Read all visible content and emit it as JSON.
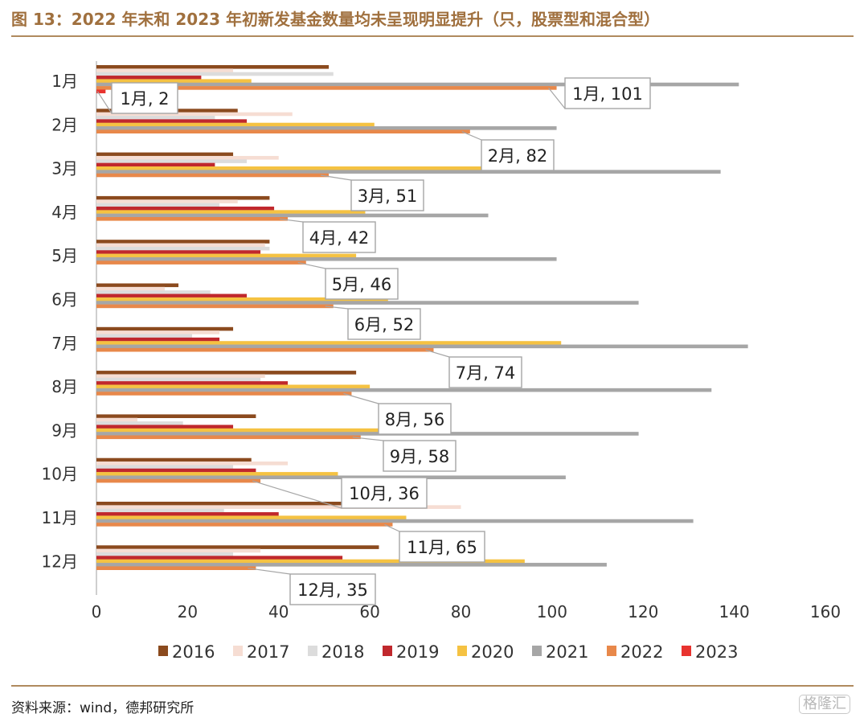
{
  "title": "图 13：2022 年末和 2023 年初新发基金数量均未呈现明显提升（只，股票型和混合型）",
  "source": "资料来源：wind，德邦研究所",
  "watermark": "格隆汇",
  "chart_data": {
    "type": "bar",
    "orientation": "horizontal",
    "categories": [
      "1月",
      "2月",
      "3月",
      "4月",
      "5月",
      "6月",
      "7月",
      "8月",
      "9月",
      "10月",
      "11月",
      "12月"
    ],
    "series": [
      {
        "name": "2016",
        "color": "#8b4a1e",
        "values": [
          51,
          31,
          30,
          38,
          38,
          18,
          30,
          57,
          35,
          34,
          54,
          62
        ]
      },
      {
        "name": "2017",
        "color": "#f6ddd3",
        "values": [
          30,
          43,
          40,
          31,
          37,
          15,
          27,
          37,
          9,
          42,
          80,
          36
        ]
      },
      {
        "name": "2018",
        "color": "#dcdcdc",
        "values": [
          52,
          26,
          33,
          27,
          38,
          25,
          21,
          36,
          19,
          30,
          28,
          30
        ]
      },
      {
        "name": "2019",
        "color": "#c0282d",
        "values": [
          23,
          33,
          26,
          39,
          36,
          33,
          27,
          42,
          30,
          35,
          40,
          54
        ]
      },
      {
        "name": "2020",
        "color": "#f5c242",
        "values": [
          34,
          61,
          97,
          59,
          57,
          64,
          102,
          60,
          64,
          53,
          68,
          94
        ]
      },
      {
        "name": "2021",
        "color": "#a6a6a6",
        "values": [
          141,
          101,
          137,
          86,
          101,
          119,
          143,
          135,
          119,
          103,
          131,
          112
        ]
      },
      {
        "name": "2022",
        "color": "#e8884a",
        "values": [
          101,
          82,
          51,
          42,
          46,
          52,
          74,
          56,
          58,
          36,
          65,
          35
        ]
      },
      {
        "name": "2023",
        "color": "#e8332f",
        "values": [
          2,
          null,
          null,
          null,
          null,
          null,
          null,
          null,
          null,
          null,
          null,
          null
        ]
      }
    ],
    "xlim": [
      0,
      160
    ],
    "xticks": [
      0,
      20,
      40,
      60,
      80,
      100,
      120,
      140,
      160
    ],
    "annotations": [
      "1月, 2",
      "1月, 101",
      "2月, 82",
      "3月, 51",
      "4月, 42",
      "5月, 46",
      "6月, 52",
      "7月, 74",
      "8月, 56",
      "9月, 58",
      "10月, 36",
      "11月, 65",
      "12月, 35"
    ],
    "legend_position": "bottom",
    "grid": false
  }
}
